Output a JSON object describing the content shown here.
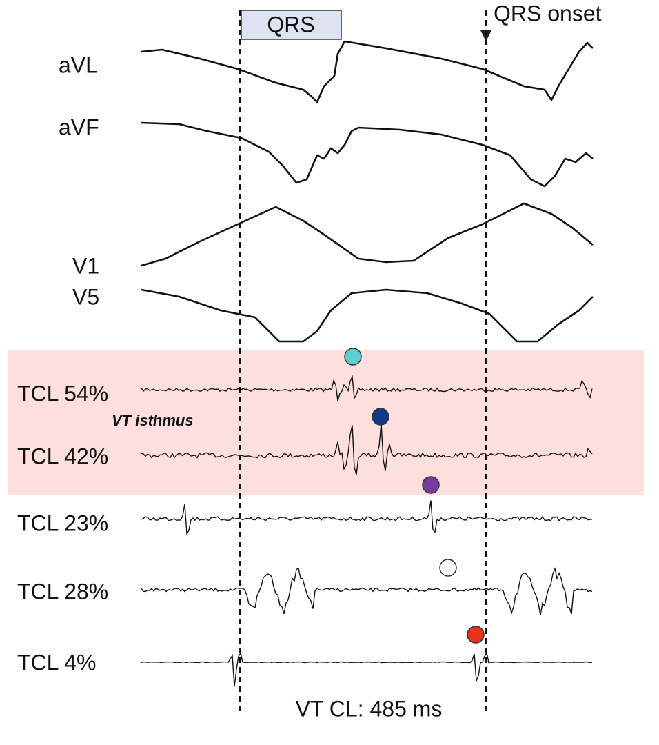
{
  "annotations": {
    "qrs": "QRS",
    "qrs_onset": "QRS onset",
    "isthmus": "VT isthmus",
    "cycle_length": "VT CL: 485 ms"
  },
  "leads": [
    "aVL",
    "aVF",
    "V1",
    "V5"
  ],
  "electrograms": [
    "TCL 54%",
    "TCL 42%",
    "TCL 23%",
    "TCL 28%",
    "TCL 4%"
  ]
}
